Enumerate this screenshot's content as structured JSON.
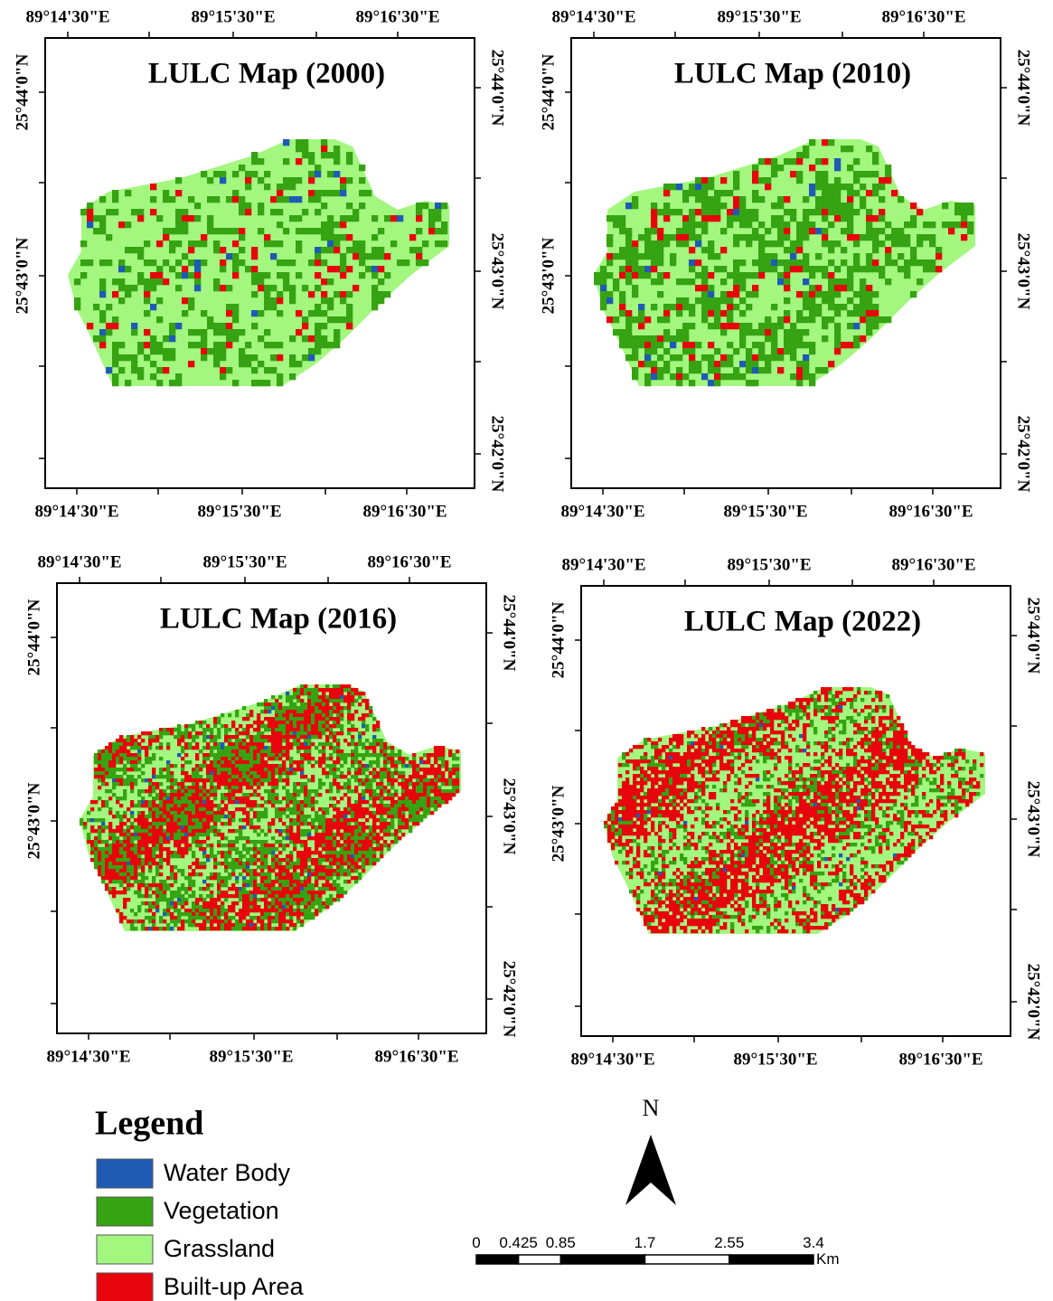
{
  "panels": [
    {
      "title": "LULC Map (2000)",
      "top_labels": [
        "89°14'30\"E",
        "89°15'30\"E",
        "89°16'30\"E"
      ],
      "bottom_labels": [
        "89°14'30\"E",
        "89°15'30\"E",
        "89°16'30\"E"
      ],
      "left_labels": [
        "25°44'0\"N",
        "25°43'0\"N"
      ],
      "right_labels": [
        "25°44'0\"N",
        "25°43'0\"N",
        "25°42'0\"N"
      ]
    },
    {
      "title": "LULC Map (2010)",
      "top_labels": [
        "89°14'30\"E",
        "89°15'30\"E",
        "89°16'30\"E"
      ],
      "bottom_labels": [
        "89°14'30\"E",
        "89°15'30\"E",
        "89°16'30\"E"
      ],
      "left_labels": [
        "25°44'0\"N",
        "25°43'0\"N"
      ],
      "right_labels": [
        "25°44'0\"N",
        "25°43'0\"N",
        "25°42'0\"N"
      ]
    },
    {
      "title": "LULC Map (2016)",
      "top_labels": [
        "89°14'30\"E",
        "89°15'30\"E",
        "89°16'30\"E"
      ],
      "bottom_labels": [
        "89°14'30\"E",
        "89°15'30\"E",
        "89°16'30\"E"
      ],
      "left_labels": [
        "25°44'0\"N",
        "25°43'0\"N"
      ],
      "right_labels": [
        "25°44'0\"N",
        "25°43'0\"N",
        "25°42'0\"N"
      ]
    },
    {
      "title": "LULC Map (2022)",
      "top_labels": [
        "89°14'30\"E",
        "89°15'30\"E",
        "89°16'30\"E"
      ],
      "bottom_labels": [
        "89°14'30\"E",
        "89°15'30\"E",
        "89°16'30\"E"
      ],
      "left_labels": [
        "25°44'0\"N",
        "25°43'0\"N"
      ],
      "right_labels": [
        "25°44'0\"N",
        "25°43'0\"N",
        "25°42'0\"N"
      ]
    }
  ],
  "legend": {
    "title": "Legend",
    "items": [
      {
        "label": "Water Body",
        "color": "#1f5bb5"
      },
      {
        "label": "Vegetation",
        "color": "#36a312"
      },
      {
        "label": "Grassland",
        "color": "#a3f77f"
      },
      {
        "label": "Built-up Area",
        "color": "#e8040c"
      }
    ]
  },
  "north_arrow": {
    "label": "N"
  },
  "scale_bar": {
    "ticks": [
      0,
      0.425,
      0.85,
      1.7,
      2.55,
      3.4
    ],
    "unit": "Km"
  }
}
